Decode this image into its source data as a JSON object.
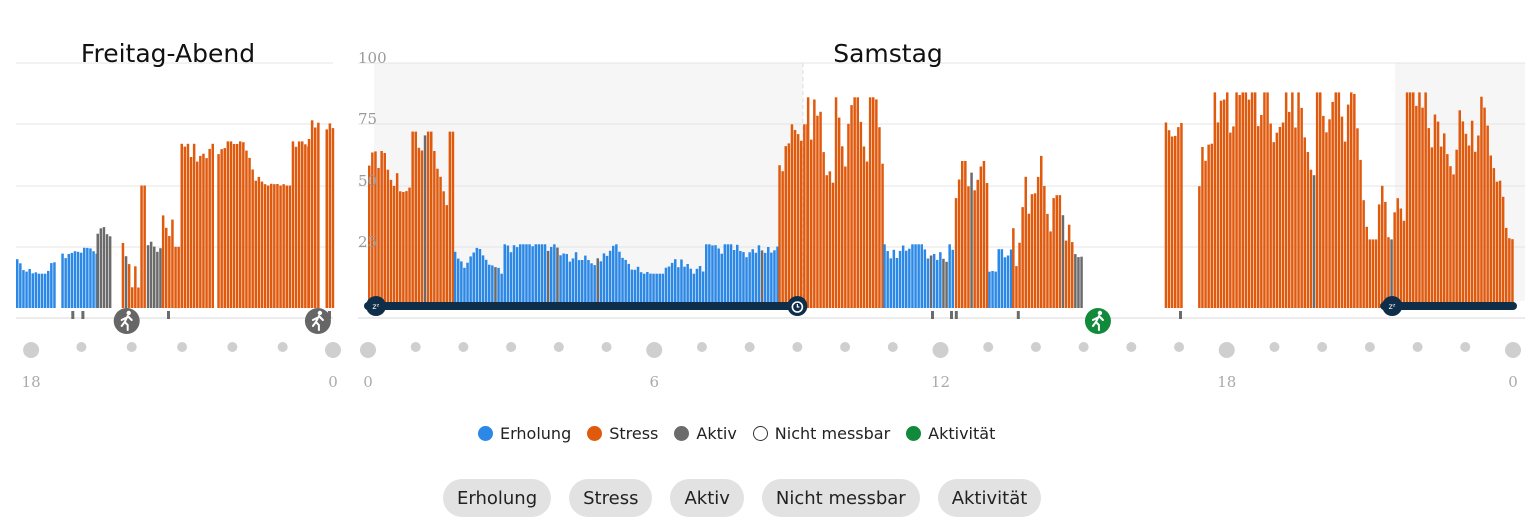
{
  "colors": {
    "recovery": "#2b88e6",
    "stress": "#e05a0e",
    "active": "#6b6b6b",
    "unmeasurable": "#ffffff",
    "activity": "#128a3c",
    "sleep_bar": "#0f2e4a",
    "grid": "#e2e2e2",
    "sleep_shade": "#f6f6f6"
  },
  "legend": [
    {
      "key": "recovery",
      "label": "Erholung"
    },
    {
      "key": "stress",
      "label": "Stress"
    },
    {
      "key": "active",
      "label": "Aktiv"
    },
    {
      "key": "unmeasurable",
      "label": "Nicht messbar"
    },
    {
      "key": "activity",
      "label": "Aktivität"
    }
  ],
  "filters": [
    "Erholung",
    "Stress",
    "Aktiv",
    "Nicht messbar",
    "Aktivität"
  ],
  "chart_data": {
    "type": "bar",
    "ylim": [
      0,
      100
    ],
    "yticks": [
      "100",
      "75",
      "50",
      "25"
    ],
    "grid": true,
    "categories_legend": [
      "Erholung",
      "Stress",
      "Aktiv",
      "Nicht messbar"
    ],
    "panels": [
      {
        "title": "Freitag-Abend",
        "x_range_hours": [
          17.7,
          24
        ],
        "xticks": [
          {
            "h": 18,
            "label": "18"
          },
          {
            "h": 24,
            "label": "0"
          }
        ],
        "segments": [
          {
            "start": 17.7,
            "end": 18.5,
            "category": "recovery",
            "min": 14,
            "max": 26
          },
          {
            "start": 18.5,
            "end": 18.6,
            "category": "none",
            "min": 0,
            "max": 0
          },
          {
            "start": 18.6,
            "end": 19.3,
            "category": "recovery",
            "min": 17,
            "max": 25
          },
          {
            "start": 19.3,
            "end": 19.6,
            "category": "active",
            "min": 22,
            "max": 33
          },
          {
            "start": 19.6,
            "end": 19.8,
            "category": "none",
            "min": 0,
            "max": 0
          },
          {
            "start": 19.8,
            "end": 20.3,
            "category": "stress",
            "min": 8,
            "max": 50
          },
          {
            "start": 20.3,
            "end": 20.6,
            "category": "active",
            "min": 20,
            "max": 28
          },
          {
            "start": 20.6,
            "end": 21.6,
            "category": "stress",
            "min": 25,
            "max": 67
          },
          {
            "start": 21.6,
            "end": 21.7,
            "category": "none",
            "min": 0,
            "max": 0
          },
          {
            "start": 21.7,
            "end": 23.5,
            "category": "stress",
            "min": 50,
            "max": 68
          },
          {
            "start": 23.5,
            "end": 23.75,
            "category": "stress",
            "min": 60,
            "max": 90
          },
          {
            "start": 23.75,
            "end": 23.85,
            "category": "none",
            "min": 0,
            "max": 0
          },
          {
            "start": 23.85,
            "end": 24,
            "category": "stress",
            "min": 65,
            "max": 86
          }
        ],
        "sleep": [],
        "activities": [
          {
            "h": 19.9,
            "icon": "walk-icon"
          },
          {
            "h": 23.7,
            "icon": "walk-icon"
          }
        ],
        "active_ticks": [
          18.8,
          19.0,
          20.7,
          23.9
        ]
      },
      {
        "title": "Samstag",
        "x_range_hours": [
          0,
          24
        ],
        "xticks": [
          {
            "h": 0,
            "label": "0"
          },
          {
            "h": 6,
            "label": "6"
          },
          {
            "h": 12,
            "label": "12"
          },
          {
            "h": 18,
            "label": "18"
          },
          {
            "h": 24,
            "label": "0"
          }
        ],
        "segments": [
          {
            "start": 0,
            "end": 1.8,
            "category": "stress",
            "min": 42,
            "max": 72
          },
          {
            "start": 1.8,
            "end": 8.6,
            "category": "recovery",
            "min": 14,
            "max": 26
          },
          {
            "start": 8.6,
            "end": 9.2,
            "category": "stress",
            "min": 20,
            "max": 75
          },
          {
            "start": 9.2,
            "end": 10.8,
            "category": "stress",
            "min": 20,
            "max": 86
          },
          {
            "start": 10.8,
            "end": 12.3,
            "category": "recovery",
            "min": 12,
            "max": 26
          },
          {
            "start": 12.3,
            "end": 13.0,
            "category": "stress",
            "min": 20,
            "max": 60
          },
          {
            "start": 13.0,
            "end": 13.5,
            "category": "recovery",
            "min": 10,
            "max": 24
          },
          {
            "start": 13.5,
            "end": 14.8,
            "category": "stress",
            "min": 15,
            "max": 72
          },
          {
            "start": 14.8,
            "end": 15.0,
            "category": "active",
            "min": 8,
            "max": 22
          },
          {
            "start": 15.0,
            "end": 16.7,
            "category": "none",
            "min": 0,
            "max": 0
          },
          {
            "start": 16.7,
            "end": 17.1,
            "category": "stress",
            "min": 70,
            "max": 85
          },
          {
            "start": 17.1,
            "end": 17.4,
            "category": "none",
            "min": 0,
            "max": 0
          },
          {
            "start": 17.4,
            "end": 24,
            "category": "stress",
            "min": 28,
            "max": 88
          }
        ],
        "sleep": [
          {
            "start": 0,
            "end": 9.0,
            "end_icon": "alarm-icon"
          },
          {
            "start": 21.3,
            "end": 24,
            "end_icon": ""
          }
        ],
        "activities": [
          {
            "h": 15.3,
            "icon": "run-icon"
          }
        ],
        "active_ticks": [
          11.8,
          12.2,
          12.3,
          13.6,
          15.2,
          17.0
        ]
      }
    ]
  }
}
